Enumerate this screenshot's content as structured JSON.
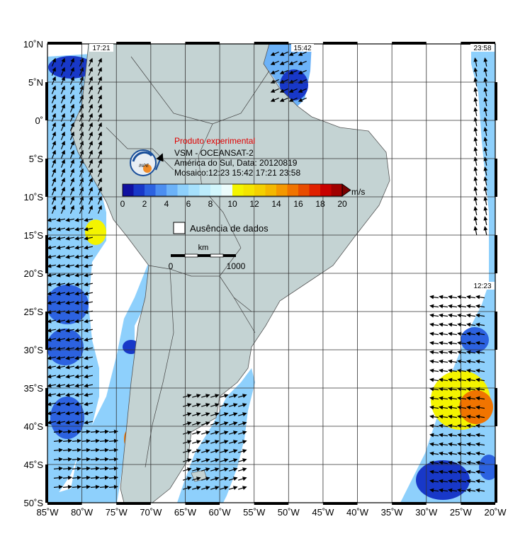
{
  "map": {
    "lat_labels": [
      "10˚N",
      "5˚N",
      "0˚",
      "5˚S",
      "10˚S",
      "15˚S",
      "20˚S",
      "25˚S",
      "30˚S",
      "35˚S",
      "40˚S",
      "45˚S",
      "50˚S"
    ],
    "lon_labels": [
      "85˚W",
      "80˚W",
      "75˚W",
      "70˚W",
      "65˚W",
      "60˚W",
      "55˚W",
      "50˚W",
      "45˚W",
      "40˚W",
      "35˚W",
      "30˚W",
      "25˚W",
      "20˚W"
    ],
    "pass_times": {
      "west_top": "17:21",
      "center_top": "15:42",
      "east_top": "23:58",
      "east_mid": "12:23"
    }
  },
  "info": {
    "experimental": "Produto experimental",
    "satellite": "VSM - OCEANSAT-2",
    "region_date": "América do Sul, Data: 20120819",
    "mosaic": "Mosaico:12:23 15:42 17:21  23:58",
    "logo_text": "INPE"
  },
  "colorbar": {
    "unit": "m/s",
    "ticks": [
      "0",
      "2",
      "4",
      "6",
      "8",
      "10",
      "12",
      "14",
      "16",
      "18",
      "20"
    ],
    "colors": [
      "#1010a0",
      "#1838c8",
      "#2c62e0",
      "#4c8ef0",
      "#6cb2f8",
      "#8ed0fc",
      "#a6e0fc",
      "#bcecfc",
      "#d2f6fc",
      "#ecfcfc",
      "#f4f400",
      "#f4e400",
      "#f4d000",
      "#f4b800",
      "#f49800",
      "#f07400",
      "#e84c00",
      "#e02000",
      "#c80000",
      "#a00000",
      "#780000"
    ],
    "nodata_label": "Ausência de dados"
  },
  "scalebar": {
    "unit": "km",
    "start": "0",
    "end": "1000"
  }
}
